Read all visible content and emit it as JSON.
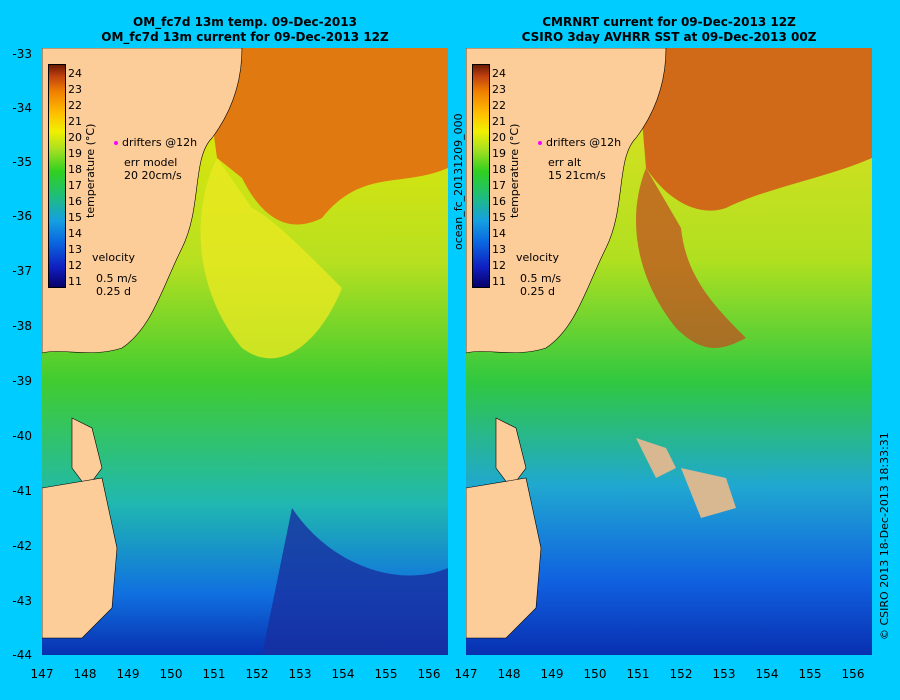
{
  "left_panel": {
    "title1": "OM_fc7d 13m temp. 09-Dec-2013",
    "title2": "OM_fc7d 13m current for 09-Dec-2013 12Z",
    "drifters": "drifters @12h",
    "err_line1": "err model",
    "err_line2": "20 20cm/s",
    "velocity": "velocity",
    "vel_speed": "0.5 m/s",
    "vel_days": "0.25 d"
  },
  "right_panel": {
    "title1": "CMRNRT current for 09-Dec-2013 12Z",
    "title2": "CSIRO 3day AVHRR SST at 09-Dec-2013 00Z",
    "drifters": "drifters @12h",
    "err_line1": "err alt",
    "err_line2": "15 21cm/s",
    "velocity": "velocity",
    "vel_speed": "0.5 m/s",
    "vel_days": "0.25 d"
  },
  "colorbar": {
    "title": "temperature (°C)",
    "ticks": [
      "24",
      "23",
      "22",
      "21",
      "20",
      "19",
      "18",
      "17",
      "16",
      "15",
      "14",
      "13",
      "12",
      "11"
    ]
  },
  "axes": {
    "y_ticks": [
      "-33",
      "-34",
      "-35",
      "-36",
      "-37",
      "-38",
      "-39",
      "-40",
      "-41",
      "-42",
      "-43",
      "-44"
    ],
    "x_ticks": [
      "147",
      "148",
      "149",
      "150",
      "151",
      "152",
      "153",
      "154",
      "155",
      "156"
    ]
  },
  "middle_label": "ocean_fc_20131209_000",
  "copyright": "© CSIRO 2013   18-Dec-2013 18:33:31",
  "colors": {
    "background": "#00ccff",
    "land": "#fccc99",
    "drifter": "#ff00ff"
  }
}
